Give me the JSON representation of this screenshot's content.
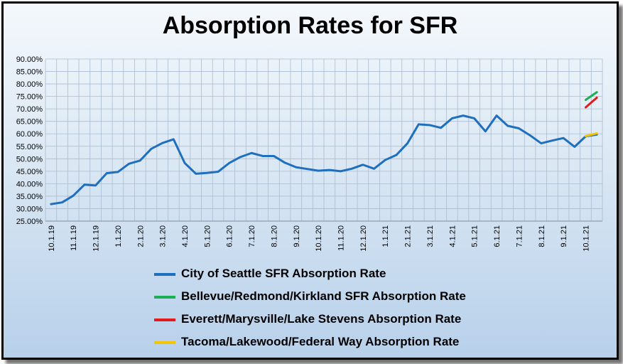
{
  "chart_data": {
    "type": "line",
    "title": "Absorption Rates for SFR",
    "xlabel": "",
    "ylabel": "",
    "ylim": [
      25,
      90
    ],
    "y_ticks": [
      "25.00%",
      "30.00%",
      "35.00%",
      "40.00%",
      "45.00%",
      "50.00%",
      "55.00%",
      "60.00%",
      "65.00%",
      "70.00%",
      "75.00%",
      "80.00%",
      "85.00%",
      "90.00%"
    ],
    "y_tick_values": [
      25,
      30,
      35,
      40,
      45,
      50,
      55,
      60,
      65,
      70,
      75,
      80,
      85,
      90
    ],
    "x_tick_labels": [
      "10.1.19",
      "11.1.19",
      "12.1.19",
      "1.1.20",
      "2.1.20",
      "3.1.20",
      "4.1.20",
      "5.1.20",
      "6.1.20",
      "7.1.20",
      "8.1.20",
      "9.1.20",
      "10.1.20",
      "11.1.20",
      "12.1.20",
      "1.1.21",
      "2.1.21",
      "3.1.21",
      "4.1.21",
      "5.1.21",
      "6.1.21",
      "7.1.21",
      "8.1.21",
      "9.1.21",
      "10.1.21"
    ],
    "x_tick_every": 2,
    "grid": true,
    "legend_position": "bottom",
    "series": [
      {
        "name": "City of Seattle SFR Absorption Rate",
        "color": "#1f6fbf",
        "start_index": 0,
        "values": [
          31.8,
          32.5,
          35.2,
          39.6,
          39.3,
          44.2,
          44.7,
          48.0,
          49.3,
          54.0,
          56.3,
          57.8,
          48.3,
          44.0,
          44.3,
          44.8,
          48.3,
          50.7,
          52.3,
          51.1,
          51.1,
          48.4,
          46.6,
          45.9,
          45.2,
          45.5,
          45.0,
          46.0,
          47.6,
          46.0,
          49.5,
          51.5,
          56.2,
          63.8,
          63.5,
          62.4,
          66.2,
          67.3,
          66.2,
          61.0,
          67.3,
          63.2,
          62.2,
          59.4,
          56.2,
          57.3,
          58.3,
          54.8,
          59.0,
          59.7
        ]
      },
      {
        "name": "Bellevue/Redmond/Kirkland SFR Absorption Rate",
        "color": "#1aaf54",
        "start_index": 48,
        "values": [
          73.6,
          76.7
        ]
      },
      {
        "name": "Everett/Marysville/Lake Stevens Absorption Rate",
        "color": "#e31a1a",
        "start_index": 48,
        "values": [
          70.6,
          74.5
        ]
      },
      {
        "name": "Tacoma/Lakewood/Federal Way Absorption Rate",
        "color": "#f5c400",
        "start_index": 48,
        "values": [
          59.1,
          60.2
        ]
      }
    ]
  }
}
